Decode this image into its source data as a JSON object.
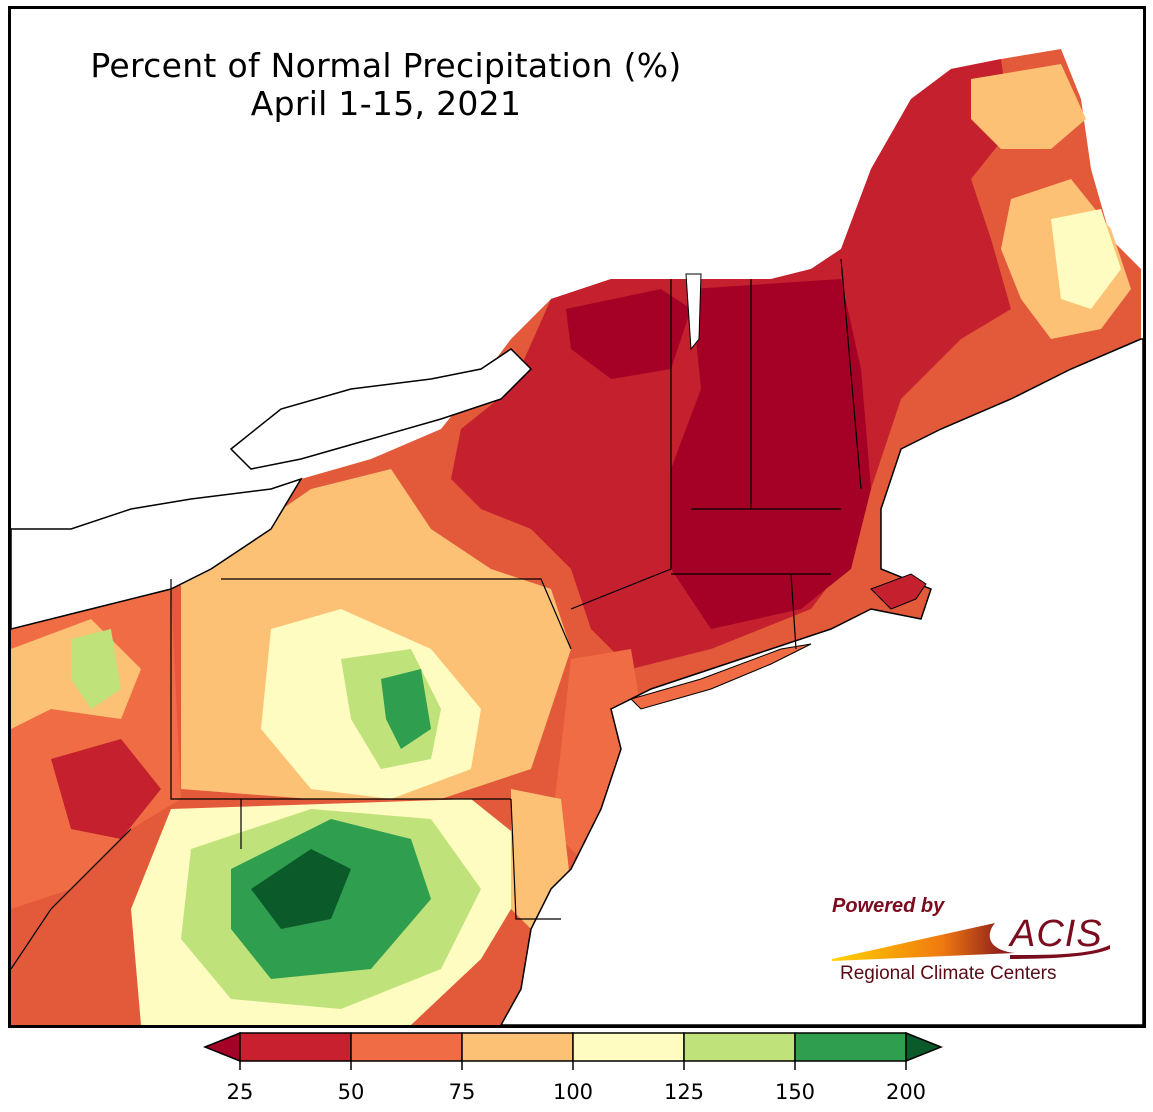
{
  "title": {
    "line1": "Percent of Normal Precipitation (%)",
    "line2": "April 1-15, 2021"
  },
  "logo": {
    "powered_by": "Powered by",
    "name": "ACIS",
    "subtitle": "Regional Climate Centers"
  },
  "legend": {
    "ticks": [
      "25",
      "50",
      "75",
      "100",
      "125",
      "150",
      "200"
    ],
    "colors": {
      "under_25": "#a50026",
      "25_50": "#c8202e",
      "50_75": "#f06c44",
      "75_100": "#fdc176",
      "100_125": "#fefcc0",
      "125_150": "#bfe27a",
      "150_200": "#2f9e4f",
      "over_200": "#0b5a2a"
    }
  },
  "map_colors": {
    "water": "#ffffff",
    "border": "#000000"
  }
}
